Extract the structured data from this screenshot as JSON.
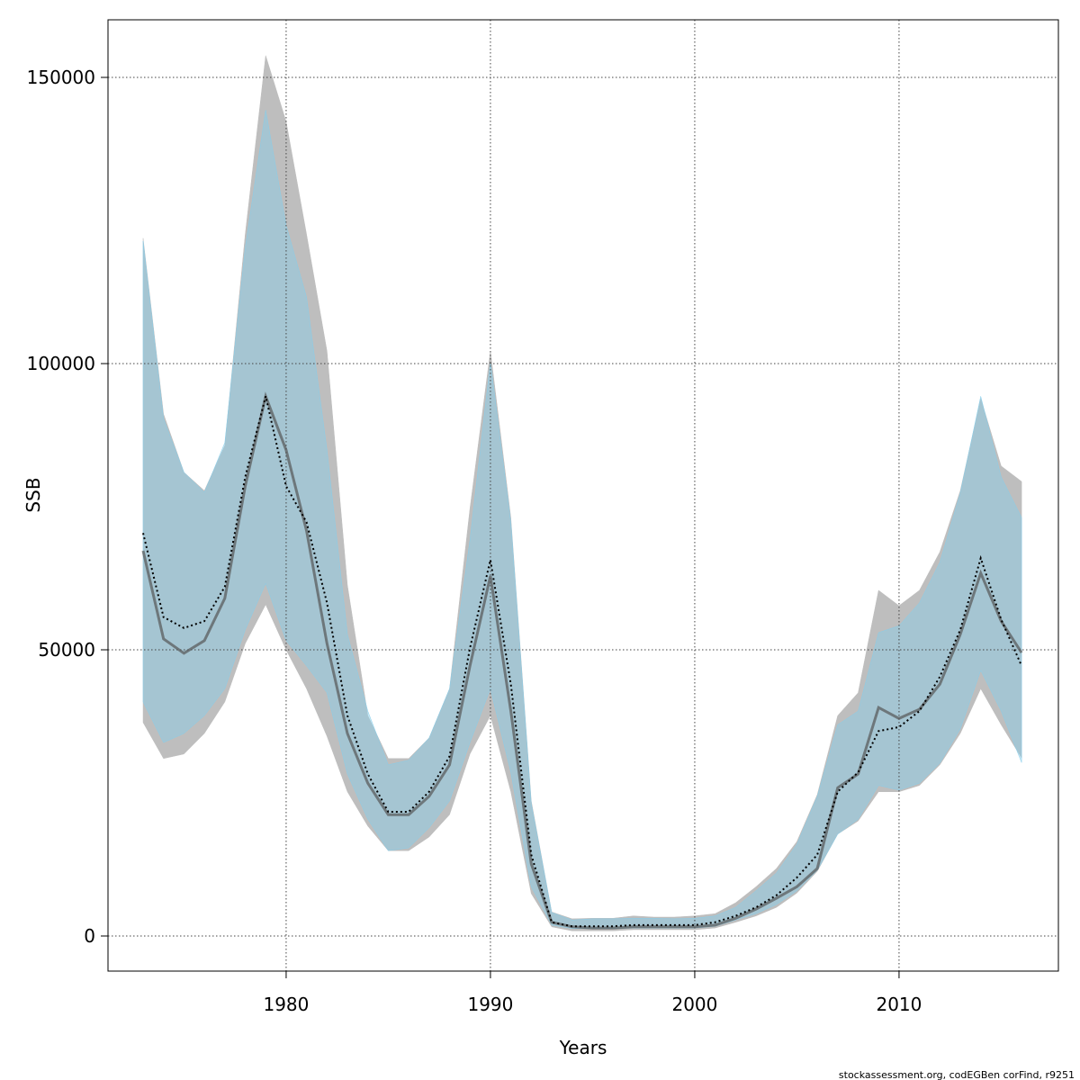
{
  "chart_data": {
    "type": "band-line",
    "xlabel": "Years",
    "ylabel": "SSB",
    "footnote": "stockassessment.org, codEGBen corFind, r9251",
    "x": [
      1973,
      1974,
      1975,
      1976,
      1977,
      1978,
      1979,
      1980,
      1981,
      1982,
      1983,
      1984,
      1985,
      1986,
      1987,
      1988,
      1989,
      1990,
      1991,
      1992,
      1993,
      1994,
      1995,
      1996,
      1997,
      1998,
      1999,
      2000,
      2001,
      2002,
      2003,
      2004,
      2005,
      2006,
      2007,
      2008,
      2009,
      2010,
      2011,
      2012,
      2013,
      2014,
      2015,
      2016
    ],
    "xlim": [
      1971.28,
      2017.8
    ],
    "ylim": [
      -6132,
      160063
    ],
    "xticks": [
      1980,
      1990,
      2000,
      2010
    ],
    "yticks": [
      0,
      50000,
      100000,
      150000
    ],
    "grid": true,
    "series": [
      {
        "line_color": "#555555",
        "band_color": "#bebebe",
        "band_opacity": 1,
        "dashed": false,
        "values": [
          67300,
          51900,
          49400,
          51600,
          59000,
          78600,
          94300,
          84900,
          70800,
          51100,
          35400,
          26700,
          21200,
          21200,
          24400,
          29900,
          47200,
          62900,
          39300,
          12600,
          2400,
          1600,
          1400,
          1400,
          1600,
          1600,
          1600,
          1600,
          1900,
          3100,
          4700,
          6600,
          8600,
          11800,
          25900,
          28300,
          39900,
          38000,
          39600,
          44000,
          52700,
          63400,
          55000,
          49500
        ],
        "upper": [
          121900,
          91200,
          81000,
          77800,
          85700,
          122600,
          153800,
          142300,
          122600,
          102200,
          61300,
          38500,
          31000,
          31000,
          34600,
          43200,
          74700,
          102200,
          73100,
          23600,
          4200,
          3000,
          3100,
          3100,
          3500,
          3300,
          3300,
          3500,
          3900,
          5800,
          8600,
          11800,
          16500,
          24700,
          38500,
          42500,
          60400,
          57700,
          60400,
          67100,
          77800,
          93900,
          82100,
          79400
        ],
        "lower": [
          37300,
          31000,
          31800,
          35400,
          40900,
          51100,
          57900,
          50000,
          43200,
          34900,
          25200,
          19200,
          14900,
          14900,
          17300,
          21200,
          31800,
          38500,
          25200,
          7400,
          1600,
          900,
          900,
          900,
          1100,
          1100,
          1100,
          1100,
          1400,
          2400,
          3500,
          5000,
          7500,
          11300,
          17800,
          20100,
          25200,
          25200,
          26300,
          29900,
          35400,
          43200,
          36900,
          31100
        ]
      },
      {
        "line_color": "#000000",
        "band_color": "#87ceeb",
        "band_opacity": 0.45,
        "dashed": true,
        "values": [
          70400,
          55700,
          53800,
          55000,
          61000,
          80200,
          94300,
          78600,
          72300,
          58200,
          38500,
          28300,
          21700,
          21700,
          25200,
          31400,
          50300,
          65700,
          44000,
          14200,
          2400,
          1700,
          1700,
          1700,
          1900,
          1900,
          1900,
          1900,
          2400,
          3500,
          5000,
          7100,
          10200,
          14200,
          25200,
          28600,
          35800,
          36500,
          39300,
          45300,
          53500,
          66000,
          55300,
          47200
        ],
        "upper": [
          121400,
          90400,
          81000,
          77500,
          86200,
          120300,
          144300,
          124200,
          111600,
          84900,
          52700,
          39300,
          29900,
          30700,
          34600,
          43200,
          69200,
          100300,
          72300,
          23100,
          4100,
          2800,
          3000,
          3000,
          3100,
          3100,
          3000,
          3100,
          3500,
          5000,
          7900,
          11000,
          16000,
          24400,
          36900,
          39300,
          53000,
          54200,
          58200,
          65300,
          77400,
          94300,
          80200,
          73100
        ],
        "lower": [
          40900,
          33800,
          35400,
          38500,
          43200,
          53500,
          61600,
          51600,
          47200,
          42500,
          28300,
          20400,
          14900,
          15400,
          18900,
          23600,
          33800,
          43200,
          28600,
          8600,
          1900,
          1300,
          1300,
          1300,
          1400,
          1400,
          1400,
          1400,
          1700,
          2800,
          3900,
          5500,
          7900,
          11500,
          17800,
          20400,
          26300,
          25500,
          26700,
          30200,
          36200,
          46400,
          39300,
          30300
        ]
      }
    ]
  }
}
